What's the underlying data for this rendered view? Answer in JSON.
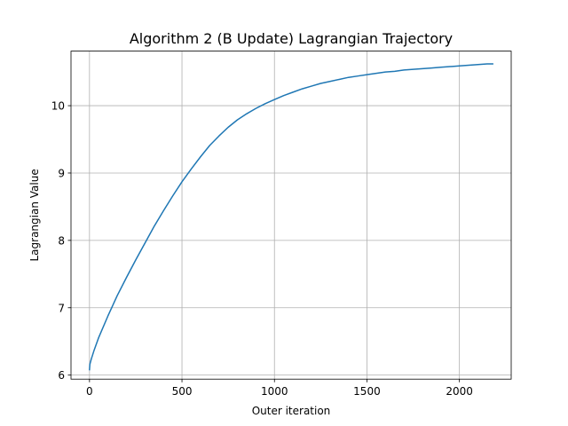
{
  "chart_data": {
    "type": "line",
    "title": "Algorithm 2 (B Update) Lagrangian Trajectory",
    "xlabel": "Outer iteration",
    "ylabel": "Lagrangian Value",
    "xlim": [
      -100,
      2280
    ],
    "ylim": [
      5.94,
      10.81
    ],
    "xticks": [
      0,
      500,
      1000,
      1500,
      2000
    ],
    "yticks": [
      6,
      7,
      8,
      9,
      10
    ],
    "grid": true,
    "series": [
      {
        "color": "#1f77b4",
        "x": [
          0,
          2,
          5,
          10,
          25,
          50,
          100,
          150,
          200,
          250,
          300,
          350,
          400,
          450,
          500,
          550,
          600,
          650,
          700,
          750,
          800,
          850,
          900,
          950,
          1000,
          1050,
          1100,
          1150,
          1200,
          1250,
          1300,
          1350,
          1400,
          1450,
          1500,
          1550,
          1600,
          1650,
          1700,
          1750,
          1800,
          1850,
          1900,
          1950,
          2000,
          2050,
          2100,
          2150,
          2180
        ],
        "y": [
          6.08,
          6.16,
          6.19,
          6.24,
          6.37,
          6.56,
          6.88,
          7.18,
          7.45,
          7.71,
          7.96,
          8.21,
          8.44,
          8.66,
          8.87,
          9.06,
          9.24,
          9.41,
          9.55,
          9.68,
          9.79,
          9.88,
          9.96,
          10.03,
          10.09,
          10.15,
          10.2,
          10.25,
          10.29,
          10.33,
          10.36,
          10.39,
          10.42,
          10.44,
          10.46,
          10.48,
          10.5,
          10.51,
          10.53,
          10.54,
          10.55,
          10.56,
          10.57,
          10.58,
          10.59,
          10.6,
          10.61,
          10.62,
          10.62
        ]
      }
    ]
  }
}
